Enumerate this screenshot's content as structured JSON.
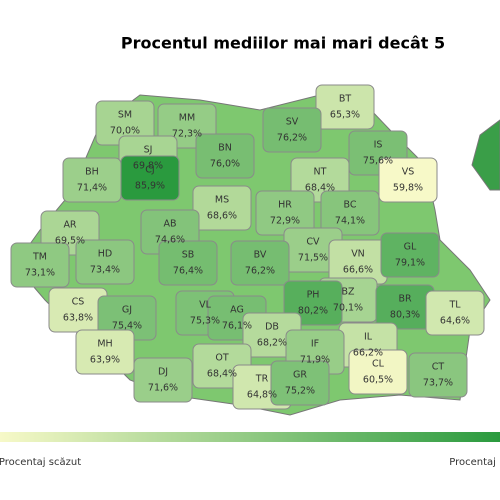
{
  "title": "Procentul mediilor mai mari decât 5",
  "legend": {
    "low": "Procentaj scăzut",
    "high": "Procentaj ridicat",
    "colors": [
      "#f7f9c8",
      "#2a9a3e"
    ]
  },
  "counties": [
    {
      "code": "SM",
      "value": 70.0,
      "value_label": "70,0%"
    },
    {
      "code": "MM",
      "value": 72.3,
      "value_label": "72,3%"
    },
    {
      "code": "BT",
      "value": 65.3,
      "value_label": "65,3%"
    },
    {
      "code": "SV",
      "value": 76.2,
      "value_label": "76,2%"
    },
    {
      "code": "SJ",
      "value": 69.8,
      "value_label": "69,8%"
    },
    {
      "code": "BN",
      "value": 76.0,
      "value_label": "76,0%"
    },
    {
      "code": "IS",
      "value": 75.6,
      "value_label": "75,6%"
    },
    {
      "code": "BH",
      "value": 71.4,
      "value_label": "71,4%"
    },
    {
      "code": "CJ",
      "value": 85.9,
      "value_label": "85,9%"
    },
    {
      "code": "NT",
      "value": 68.4,
      "value_label": "68,4%"
    },
    {
      "code": "VS",
      "value": 59.8,
      "value_label": "59,8%"
    },
    {
      "code": "MS",
      "value": 68.6,
      "value_label": "68,6%"
    },
    {
      "code": "HR",
      "value": 72.9,
      "value_label": "72,9%"
    },
    {
      "code": "BC",
      "value": 74.1,
      "value_label": "74,1%"
    },
    {
      "code": "AR",
      "value": 69.5,
      "value_label": "69,5%"
    },
    {
      "code": "AB",
      "value": 74.6,
      "value_label": "74,6%"
    },
    {
      "code": "CV",
      "value": 71.5,
      "value_label": "71,5%"
    },
    {
      "code": "VN",
      "value": 66.6,
      "value_label": "66,6%"
    },
    {
      "code": "GL",
      "value": 79.1,
      "value_label": "79,1%"
    },
    {
      "code": "TM",
      "value": 73.1,
      "value_label": "73,1%"
    },
    {
      "code": "HD",
      "value": 73.4,
      "value_label": "73,4%"
    },
    {
      "code": "SB",
      "value": 76.4,
      "value_label": "76,4%"
    },
    {
      "code": "BV",
      "value": 76.2,
      "value_label": "76,2%"
    },
    {
      "code": "BZ",
      "value": 70.1,
      "value_label": "70,1%"
    },
    {
      "code": "BR",
      "value": 80.3,
      "value_label": "80,3%"
    },
    {
      "code": "CS",
      "value": 63.8,
      "value_label": "63,8%"
    },
    {
      "code": "GJ",
      "value": 75.4,
      "value_label": "75,4%"
    },
    {
      "code": "VL",
      "value": 75.3,
      "value_label": "75,3%"
    },
    {
      "code": "AG",
      "value": 76.1,
      "value_label": "76,1%"
    },
    {
      "code": "PH",
      "value": 80.2,
      "value_label": "80,2%"
    },
    {
      "code": "DB",
      "value": 68.2,
      "value_label": "68,2%"
    },
    {
      "code": "TL",
      "value": 64.6,
      "value_label": "64,6%"
    },
    {
      "code": "MH",
      "value": 63.9,
      "value_label": "63,9%"
    },
    {
      "code": "OT",
      "value": 68.4,
      "value_label": "68,4%"
    },
    {
      "code": "IL",
      "value": 66.2,
      "value_label": "66,2%"
    },
    {
      "code": "IF",
      "value": 71.9,
      "value_label": "71,9%"
    },
    {
      "code": "DJ",
      "value": 71.6,
      "value_label": "71,6%"
    },
    {
      "code": "TR",
      "value": 64.8,
      "value_label": "64,8%"
    },
    {
      "code": "GR",
      "value": 75.2,
      "value_label": "75,2%"
    },
    {
      "code": "CL",
      "value": 60.5,
      "value_label": "60,5%"
    },
    {
      "code": "CT",
      "value": 73.7,
      "value_label": "73,7%"
    }
  ]
}
